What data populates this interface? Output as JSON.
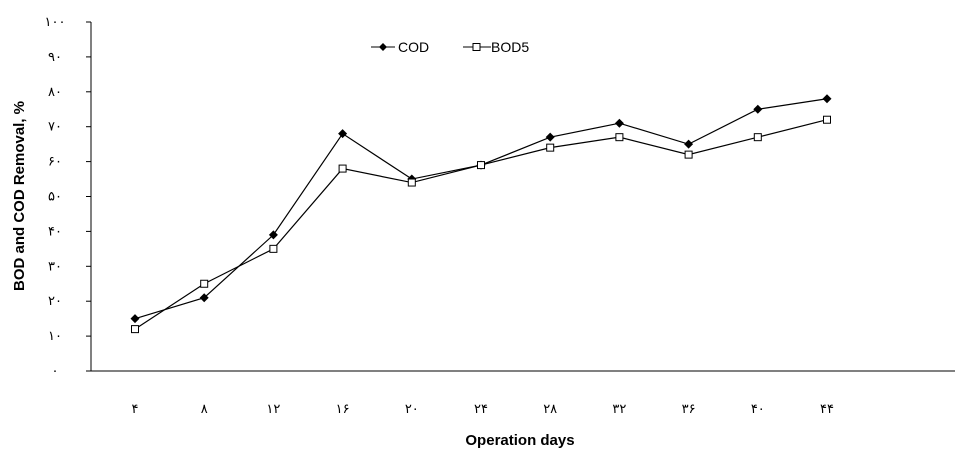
{
  "chart_data": {
    "type": "line",
    "title": "",
    "xlabel": "Operation days",
    "ylabel": "BOD and COD Removal, %",
    "categories": [
      "۴",
      "۸",
      "۱۲",
      "۱۶",
      "۲۰",
      "۲۴",
      "۲۸",
      "۳۲",
      "۳۶",
      "۴۰",
      "۴۴"
    ],
    "x": [
      4,
      8,
      12,
      16,
      20,
      24,
      28,
      32,
      36,
      40,
      44
    ],
    "yticks": [
      "۰",
      "۱۰",
      "۲۰",
      "۳۰",
      "۴۰",
      "۵۰",
      "۶۰",
      "۷۰",
      "۸۰",
      "۹۰",
      "۱۰۰"
    ],
    "ylim": [
      0,
      100
    ],
    "grid": false,
    "legend_position": "top-center",
    "series": [
      {
        "name": "COD",
        "marker": "filled-diamond",
        "color": "#000000",
        "values": [
          15,
          21,
          39,
          68,
          55,
          59,
          67,
          71,
          65,
          75,
          78
        ]
      },
      {
        "name": "BOD5",
        "marker": "open-square",
        "color": "#000000",
        "values": [
          12,
          25,
          35,
          58,
          54,
          59,
          64,
          67,
          62,
          67,
          72
        ]
      }
    ]
  }
}
